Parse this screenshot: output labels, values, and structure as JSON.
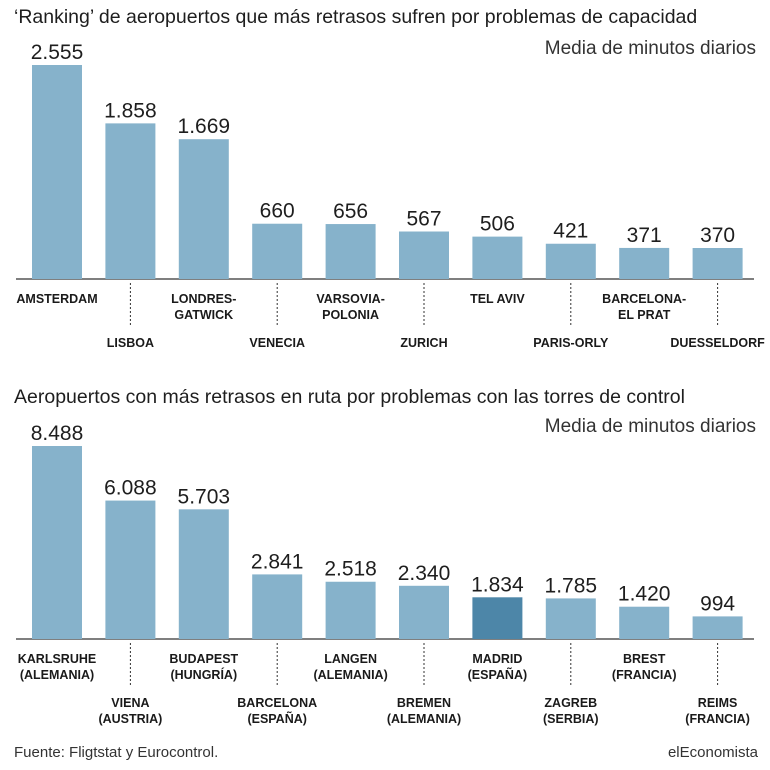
{
  "chart_data": [
    {
      "type": "bar",
      "title": "‘Ranking’ de aeropuertos que más retrasos sufren por problemas de capacidad",
      "subtitle": "Media de minutos diarios",
      "categories": [
        [
          "AMSTERDAM"
        ],
        [
          "LISBOA"
        ],
        [
          "LONDRES-",
          "GATWICK"
        ],
        [
          "VENECIA"
        ],
        [
          "VARSOVIA-",
          "POLONIA"
        ],
        [
          "ZURICH"
        ],
        [
          "TEL AVIV"
        ],
        [
          "PARIS-ORLY"
        ],
        [
          "BARCELONA-",
          "EL PRAT"
        ],
        [
          "DUESSELDORF"
        ]
      ],
      "values": [
        2555,
        1858,
        1669,
        660,
        656,
        567,
        506,
        421,
        371,
        370
      ],
      "value_labels": [
        "2.555",
        "1.858",
        "1.669",
        "660",
        "656",
        "567",
        "506",
        "421",
        "371",
        "370"
      ],
      "ylim": [
        0,
        2555
      ],
      "bar_color": "#86b2cb",
      "highlight_color": "#4d86a8",
      "highlight_index": -1,
      "label_rows": "alternating",
      "grid": false
    },
    {
      "type": "bar",
      "title": "Aeropuertos con más retrasos en ruta por problemas con las torres de control",
      "subtitle": "Media de minutos diarios",
      "categories": [
        [
          "KARLSRUHE",
          "(ALEMANIA)"
        ],
        [
          "VIENA",
          "(AUSTRIA)"
        ],
        [
          "BUDAPEST",
          "(HUNGRÍA)"
        ],
        [
          "BARCELONA",
          "(ESPAÑA)"
        ],
        [
          "LANGEN",
          "(ALEMANIA)"
        ],
        [
          "BREMEN",
          "(ALEMANIA)"
        ],
        [
          "MADRID",
          "(ESPAÑA)"
        ],
        [
          "ZAGREB",
          "(SERBIA)"
        ],
        [
          "BREST",
          "(FRANCIA)"
        ],
        [
          "REIMS",
          "(FRANCIA)"
        ]
      ],
      "values": [
        8488,
        6088,
        5703,
        2841,
        2518,
        2340,
        1834,
        1785,
        1420,
        994
      ],
      "value_labels": [
        "8.488",
        "6.088",
        "5.703",
        "2.841",
        "2.518",
        "2.340",
        "1.834",
        "1.785",
        "1.420",
        "994"
      ],
      "ylim": [
        0,
        8488
      ],
      "bar_color": "#86b2cb",
      "highlight_color": "#4d86a8",
      "highlight_index": 6,
      "label_rows": "alternating",
      "grid": false
    }
  ],
  "footer": {
    "source": "Fuente: Fligtstat y Eurocontrol.",
    "brand": "elEconomista"
  }
}
